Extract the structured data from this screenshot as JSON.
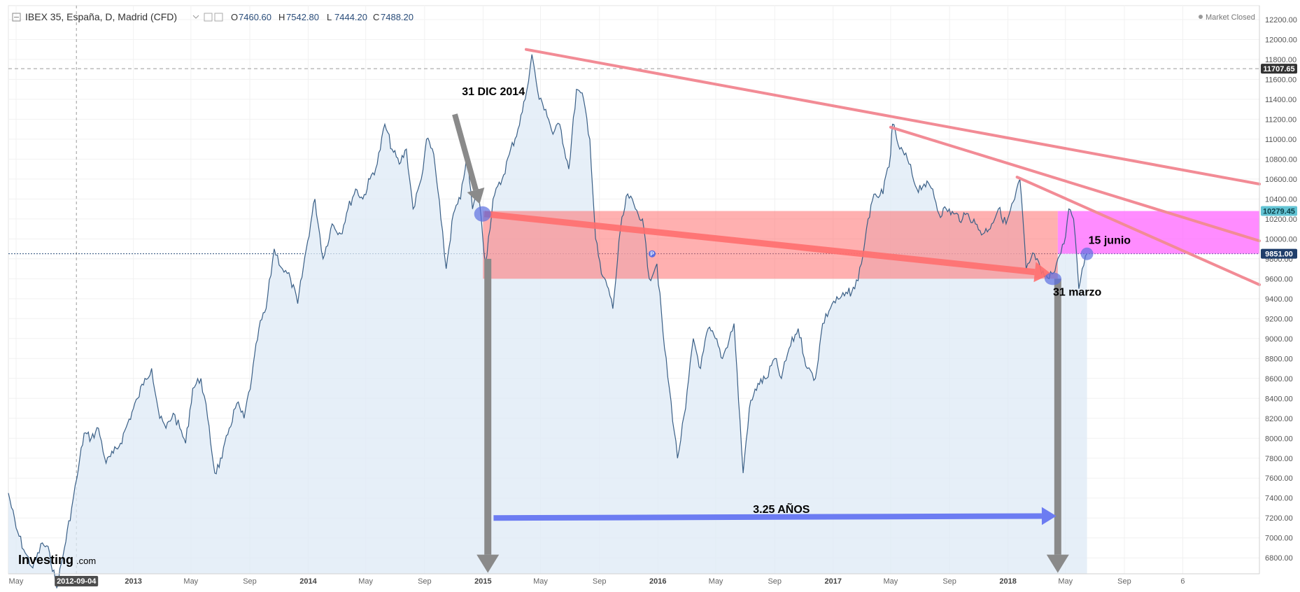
{
  "header": {
    "symbol": "IBEX 35, España, D, Madrid (CFD)",
    "open_label": "O",
    "open": "7460.60",
    "high_label": "H",
    "high": "7542.80",
    "low_label": "L",
    "low": "7444.20",
    "close_label": "C",
    "close": "7488.20",
    "market_status": "Market Closed"
  },
  "branding": {
    "logo_text": "Investing",
    "logo_suffix": ".com"
  },
  "colors": {
    "line": "#3a5f86",
    "area": "#dde9f6",
    "trendline": "#f28b95",
    "red_zone": "#ff6f6f",
    "magenta_zone": "#ff66ff",
    "gray_arrow": "#8a8a8a",
    "blue_arrow": "#6c7cf2",
    "marker": "#5b6fe0"
  },
  "chart_data": {
    "type": "area",
    "x_axis": {
      "type": "date",
      "range": [
        "2012-04-15",
        "2019-06-10"
      ],
      "ticks": [
        {
          "date": "2012-05-01",
          "label": "May"
        },
        {
          "date": "2013-01-01",
          "label": "2013"
        },
        {
          "date": "2013-05-01",
          "label": "May"
        },
        {
          "date": "2013-09-01",
          "label": "Sep"
        },
        {
          "date": "2014-01-01",
          "label": "2014"
        },
        {
          "date": "2014-05-01",
          "label": "May"
        },
        {
          "date": "2014-09-01",
          "label": "Sep"
        },
        {
          "date": "2015-01-01",
          "label": "2015"
        },
        {
          "date": "2015-05-01",
          "label": "May"
        },
        {
          "date": "2015-09-01",
          "label": "Sep"
        },
        {
          "date": "2016-01-01",
          "label": "2016"
        },
        {
          "date": "2016-05-01",
          "label": "May"
        },
        {
          "date": "2016-09-01",
          "label": "Sep"
        },
        {
          "date": "2017-01-01",
          "label": "2017"
        },
        {
          "date": "2017-05-01",
          "label": "May"
        },
        {
          "date": "2017-09-01",
          "label": "Sep"
        },
        {
          "date": "2018-01-01",
          "label": "2018"
        },
        {
          "date": "2018-05-01",
          "label": "May"
        },
        {
          "date": "2018-09-01",
          "label": "Sep"
        },
        {
          "date": "2019-01-01",
          "label": "6"
        }
      ],
      "crosshair_label": "2012-09-04"
    },
    "y_axis": {
      "range": [
        6640,
        12340
      ],
      "ticks": [
        6800,
        7000,
        7200,
        7400,
        7600,
        7800,
        8000,
        8200,
        8400,
        8600,
        8800,
        9000,
        9200,
        9400,
        9600,
        9800,
        10000,
        10200,
        10400,
        10600,
        10800,
        11000,
        11200,
        11400,
        11600,
        11800,
        12000,
        12200
      ],
      "price_labels": [
        {
          "value": 11707.65,
          "label": "11707.65",
          "style": "dark"
        },
        {
          "value": 10279.45,
          "label": "10279.45",
          "style": "teal"
        },
        {
          "value": 9851.0,
          "label": "9851.00",
          "style": "navy"
        }
      ],
      "horizontal_lines": [
        {
          "value": 11707.65,
          "style": "dashed"
        },
        {
          "value": 9851.0,
          "style": "dotted"
        }
      ]
    },
    "series": [
      {
        "values": [
          [
            "2012-04-15",
            7450
          ],
          [
            "2012-05-01",
            7100
          ],
          [
            "2012-05-20",
            6850
          ],
          [
            "2012-06-05",
            6700
          ],
          [
            "2012-06-25",
            6950
          ],
          [
            "2012-07-10",
            6850
          ],
          [
            "2012-07-25",
            6500
          ],
          [
            "2012-08-10",
            6900
          ],
          [
            "2012-08-25",
            7300
          ],
          [
            "2012-09-05",
            7600
          ],
          [
            "2012-09-20",
            8050
          ],
          [
            "2012-10-05",
            8000
          ],
          [
            "2012-10-20",
            8100
          ],
          [
            "2012-11-05",
            7750
          ],
          [
            "2012-11-20",
            7850
          ],
          [
            "2012-12-05",
            7950
          ],
          [
            "2012-12-20",
            8150
          ],
          [
            "2013-01-10",
            8400
          ],
          [
            "2013-01-25",
            8600
          ],
          [
            "2013-02-08",
            8700
          ],
          [
            "2013-02-25",
            8200
          ],
          [
            "2013-03-10",
            8100
          ],
          [
            "2013-03-25",
            8250
          ],
          [
            "2013-04-08",
            8100
          ],
          [
            "2013-04-20",
            7950
          ],
          [
            "2013-05-05",
            8500
          ],
          [
            "2013-05-22",
            8600
          ],
          [
            "2013-06-05",
            8200
          ],
          [
            "2013-06-20",
            7650
          ],
          [
            "2013-07-05",
            7800
          ],
          [
            "2013-07-20",
            8100
          ],
          [
            "2013-08-05",
            8350
          ],
          [
            "2013-08-20",
            8200
          ],
          [
            "2013-09-05",
            8600
          ],
          [
            "2013-09-20",
            9100
          ],
          [
            "2013-10-05",
            9300
          ],
          [
            "2013-10-22",
            9900
          ],
          [
            "2013-11-08",
            9700
          ],
          [
            "2013-11-25",
            9600
          ],
          [
            "2013-12-10",
            9350
          ],
          [
            "2013-12-28",
            9900
          ],
          [
            "2014-01-15",
            10400
          ],
          [
            "2014-02-01",
            9800
          ],
          [
            "2014-02-20",
            10150
          ],
          [
            "2014-03-10",
            10050
          ],
          [
            "2014-03-25",
            10300
          ],
          [
            "2014-04-10",
            10500
          ],
          [
            "2014-04-25",
            10400
          ],
          [
            "2014-05-10",
            10600
          ],
          [
            "2014-05-25",
            10750
          ],
          [
            "2014-06-10",
            11150
          ],
          [
            "2014-06-25",
            10900
          ],
          [
            "2014-07-10",
            10750
          ],
          [
            "2014-07-25",
            10900
          ],
          [
            "2014-08-08",
            10300
          ],
          [
            "2014-08-25",
            10600
          ],
          [
            "2014-09-05",
            11000
          ],
          [
            "2014-09-20",
            10850
          ],
          [
            "2014-10-05",
            10200
          ],
          [
            "2014-10-16",
            9700
          ],
          [
            "2014-10-31",
            10250
          ],
          [
            "2014-11-15",
            10400
          ],
          [
            "2014-11-28",
            10850
          ],
          [
            "2014-12-10",
            10300
          ],
          [
            "2014-12-22",
            10500
          ],
          [
            "2015-01-06",
            9750
          ],
          [
            "2015-01-22",
            10400
          ],
          [
            "2015-02-10",
            10600
          ],
          [
            "2015-02-25",
            10850
          ],
          [
            "2015-03-15",
            11100
          ],
          [
            "2015-03-30",
            11400
          ],
          [
            "2015-04-13",
            11850
          ],
          [
            "2015-04-28",
            11400
          ],
          [
            "2015-05-12",
            11300
          ],
          [
            "2015-05-27",
            11050
          ],
          [
            "2015-06-10",
            11150
          ],
          [
            "2015-06-29",
            10700
          ],
          [
            "2015-07-15",
            11500
          ],
          [
            "2015-07-30",
            11400
          ],
          [
            "2015-08-12",
            11000
          ],
          [
            "2015-08-24",
            10000
          ],
          [
            "2015-09-05",
            9650
          ],
          [
            "2015-09-20",
            9500
          ],
          [
            "2015-09-29",
            9300
          ],
          [
            "2015-10-15",
            10100
          ],
          [
            "2015-10-30",
            10450
          ],
          [
            "2015-11-15",
            10300
          ],
          [
            "2015-11-30",
            10200
          ],
          [
            "2015-12-14",
            9600
          ],
          [
            "2015-12-30",
            9750
          ],
          [
            "2016-01-15",
            8900
          ],
          [
            "2016-02-11",
            7800
          ],
          [
            "2016-02-28",
            8300
          ],
          [
            "2016-03-15",
            9000
          ],
          [
            "2016-03-30",
            8700
          ],
          [
            "2016-04-15",
            9100
          ],
          [
            "2016-04-30",
            9000
          ],
          [
            "2016-05-15",
            8800
          ],
          [
            "2016-06-08",
            9150
          ],
          [
            "2016-06-27",
            7650
          ],
          [
            "2016-07-10",
            8300
          ],
          [
            "2016-07-28",
            8550
          ],
          [
            "2016-08-15",
            8600
          ],
          [
            "2016-09-01",
            8800
          ],
          [
            "2016-09-15",
            8600
          ],
          [
            "2016-10-01",
            8900
          ],
          [
            "2016-10-20",
            9100
          ],
          [
            "2016-11-08",
            8700
          ],
          [
            "2016-11-25",
            8600
          ],
          [
            "2016-12-10",
            9150
          ],
          [
            "2016-12-30",
            9350
          ],
          [
            "2017-01-15",
            9400
          ],
          [
            "2017-01-31",
            9450
          ],
          [
            "2017-02-15",
            9500
          ],
          [
            "2017-03-01",
            9750
          ],
          [
            "2017-03-15",
            10200
          ],
          [
            "2017-03-30",
            10450
          ],
          [
            "2017-04-15",
            10450
          ],
          [
            "2017-05-01",
            10850
          ],
          [
            "2017-05-05",
            11150
          ],
          [
            "2017-05-20",
            10900
          ],
          [
            "2017-06-05",
            10800
          ],
          [
            "2017-06-25",
            10500
          ],
          [
            "2017-07-10",
            10550
          ],
          [
            "2017-07-28",
            10500
          ],
          [
            "2017-08-10",
            10250
          ],
          [
            "2017-08-25",
            10300
          ],
          [
            "2017-09-10",
            10250
          ],
          [
            "2017-09-28",
            10200
          ],
          [
            "2017-10-10",
            10250
          ],
          [
            "2017-10-25",
            10150
          ],
          [
            "2017-11-10",
            10050
          ],
          [
            "2017-11-28",
            10150
          ],
          [
            "2017-12-12",
            10300
          ],
          [
            "2017-12-28",
            10150
          ],
          [
            "2018-01-15",
            10400
          ],
          [
            "2018-01-26",
            10600
          ],
          [
            "2018-02-08",
            9700
          ],
          [
            "2018-02-25",
            9850
          ],
          [
            "2018-03-12",
            9650
          ],
          [
            "2018-03-28",
            9600
          ],
          [
            "2018-04-12",
            9750
          ],
          [
            "2018-04-28",
            9950
          ],
          [
            "2018-05-08",
            10300
          ],
          [
            "2018-05-18",
            10200
          ],
          [
            "2018-05-29",
            9500
          ],
          [
            "2018-06-05",
            9700
          ],
          [
            "2018-06-15",
            9850
          ]
        ]
      }
    ],
    "annotations": {
      "labels": [
        {
          "text": "31 DIC 2014",
          "date": "2014-11-18",
          "value": 11440
        },
        {
          "text": "15 junio",
          "date": "2018-06-18",
          "value": 9950
        },
        {
          "text": "31 marzo",
          "date": "2018-04-05",
          "value": 9430
        },
        {
          "text": "3.25 AÑOS",
          "date": "2016-09-15",
          "value": 7250
        }
      ],
      "trendlines": [
        {
          "from": [
            "2015-04-01",
            11900
          ],
          "to": [
            "2019-06-10",
            10550
          ]
        },
        {
          "from": [
            "2017-05-01",
            11120
          ],
          "to": [
            "2019-06-10",
            9980
          ]
        },
        {
          "from": [
            "2018-01-20",
            10620
          ],
          "to": [
            "2019-06-10",
            9540
          ]
        }
      ],
      "rectangles": [
        {
          "from": [
            "2015-01-01",
            9600
          ],
          "to": [
            "2018-04-15",
            10279.45
          ],
          "color": "red_zone"
        },
        {
          "from": [
            "2018-04-15",
            9851
          ],
          "to": [
            "2019-06-10",
            10279.45
          ],
          "color": "magenta_zone"
        }
      ],
      "arrows": [
        {
          "from": [
            "2014-11-03",
            11250
          ],
          "to": [
            "2014-12-25",
            10350
          ],
          "color": "gray_arrow",
          "width": 8
        },
        {
          "from": [
            "2015-01-04",
            10250
          ],
          "to": [
            "2018-04-01",
            9650
          ],
          "color": "red_zone",
          "width": 9
        },
        {
          "from": [
            "2015-01-11",
            9800
          ],
          "to": [
            "2015-01-11",
            6650
          ],
          "color": "gray_arrow",
          "width": 10
        },
        {
          "from": [
            "2018-04-15",
            9600
          ],
          "to": [
            "2018-04-15",
            6650
          ],
          "color": "gray_arrow",
          "width": 10
        },
        {
          "from": [
            "2015-01-23",
            7200
          ],
          "to": [
            "2018-04-12",
            7220
          ],
          "color": "blue_arrow",
          "width": 8
        }
      ],
      "markers": [
        {
          "date": "2014-12-31",
          "value": 10250,
          "rx": 12,
          "ry": 11
        },
        {
          "date": "2018-04-05",
          "value": 9600,
          "rx": 12,
          "ry": 9
        },
        {
          "date": "2018-06-15",
          "value": 9850,
          "rx": 9,
          "ry": 9
        },
        {
          "date": "2015-12-20",
          "value": 9850,
          "rx": 5,
          "ry": 5,
          "letter": "P"
        }
      ]
    }
  }
}
